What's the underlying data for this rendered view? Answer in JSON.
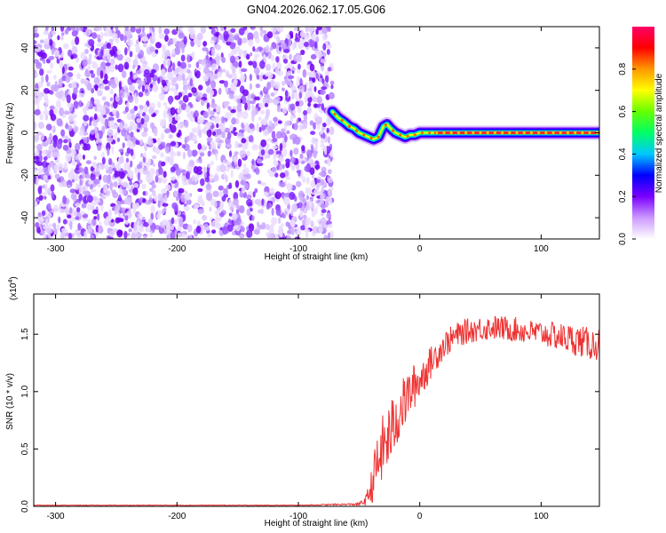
{
  "title": "GN04.2026.062.17.05.G06",
  "chart_data": [
    {
      "type": "heatmap",
      "xlabel": "Height of straight line (km)",
      "ylabel": "Frequency (Hz)",
      "xlim": [
        -318,
        148
      ],
      "ylim": [
        -50,
        50
      ],
      "xticks": [
        -300,
        -200,
        -100,
        0,
        100
      ],
      "xtick_labels": [
        "-300",
        "-200",
        "-100",
        "0",
        "100"
      ],
      "yticks": [
        -40,
        -20,
        0,
        20,
        40
      ],
      "ytick_labels": [
        "-40",
        "-20",
        "0",
        "20",
        "40"
      ],
      "noise_region_x": [
        -318,
        -72
      ],
      "ridge": {
        "x": [
          -72,
          -67,
          -62,
          -58,
          -54,
          -50,
          -46,
          -42,
          -38,
          -34,
          -30,
          -27,
          -24,
          -20,
          -16,
          -12,
          -8,
          -4,
          0,
          10,
          20,
          40,
          60,
          80,
          100,
          120,
          135,
          148
        ],
        "y": [
          10,
          7,
          5,
          3,
          2,
          0,
          -1,
          -2,
          -3,
          -2,
          3,
          4,
          2,
          0,
          -1,
          -2,
          -1,
          -1,
          0,
          0,
          0,
          0,
          0,
          0,
          0,
          0,
          0,
          0
        ]
      },
      "colorbar": {
        "label": "Normalized spectral amplitude",
        "range": [
          0,
          1
        ],
        "ticks": [
          0.0,
          0.2,
          0.4,
          0.6,
          0.8
        ],
        "tick_labels": [
          "0.0",
          "0.2",
          "0.4",
          "0.6",
          "0.8"
        ],
        "colors": [
          "#ffffff",
          "#cc99ff",
          "#7a00ff",
          "#0000ff",
          "#00c8ff",
          "#00ff66",
          "#66ff00",
          "#ffff00",
          "#ff9900",
          "#ff0000",
          "#ff0066"
        ]
      }
    },
    {
      "type": "line",
      "xlabel": "Height of straight line (km)",
      "ylabel": "SNR (10 * v/v)",
      "y_multiplier_label": "(x10",
      "y_multiplier_exp": "4",
      "y_multiplier_close": ")",
      "xlim": [
        -318,
        148
      ],
      "ylim": [
        0,
        1.85
      ],
      "xticks": [
        -300,
        -200,
        -100,
        0,
        100
      ],
      "xtick_labels": [
        "-300",
        "-200",
        "-100",
        "0",
        "100"
      ],
      "yticks": [
        0.0,
        0.5,
        1.0,
        1.5
      ],
      "ytick_labels": [
        "0.0",
        "0.5",
        "1.0",
        "1.5"
      ],
      "line_color": "#ee3333",
      "series": [
        {
          "name": "SNR",
          "x": [
            -318,
            -200,
            -100,
            -50,
            -44,
            -40,
            -36,
            -33,
            -30,
            -26,
            -22,
            -18,
            -14,
            -10,
            -5,
            0,
            5,
            10,
            15,
            20,
            30,
            40,
            50,
            60,
            70,
            80,
            90,
            100,
            110,
            120,
            130,
            140,
            148
          ],
          "y": [
            0.01,
            0.01,
            0.01,
            0.02,
            0.06,
            0.18,
            0.35,
            0.45,
            0.55,
            0.62,
            0.72,
            0.82,
            0.9,
            0.98,
            1.06,
            1.12,
            1.2,
            1.28,
            1.35,
            1.42,
            1.5,
            1.54,
            1.56,
            1.57,
            1.56,
            1.55,
            1.53,
            1.52,
            1.5,
            1.48,
            1.46,
            1.43,
            1.42
          ],
          "amplitude": [
            0.003,
            0.003,
            0.003,
            0.01,
            0.05,
            0.15,
            0.25,
            0.28,
            0.3,
            0.3,
            0.28,
            0.26,
            0.24,
            0.22,
            0.2,
            0.18,
            0.16,
            0.14,
            0.13,
            0.12,
            0.11,
            0.11,
            0.11,
            0.11,
            0.11,
            0.11,
            0.11,
            0.11,
            0.12,
            0.13,
            0.14,
            0.14,
            0.14
          ]
        }
      ]
    }
  ]
}
